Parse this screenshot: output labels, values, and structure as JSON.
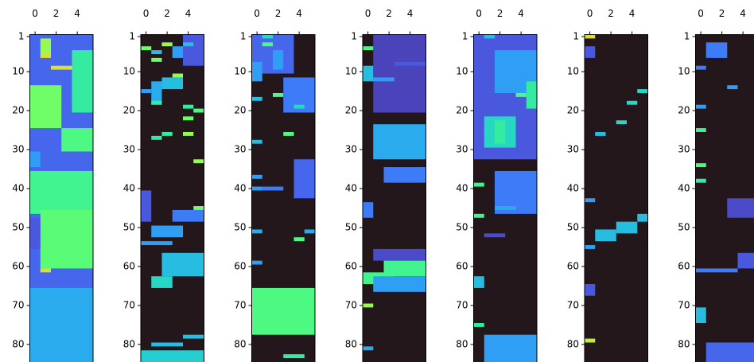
{
  "chart_data": [
    {
      "type": "heatmap",
      "colormap": "turbo",
      "clim": [
        0,
        1
      ],
      "xlim": [
        -0.5,
        5.5
      ],
      "ylim": [
        0.5,
        84.5
      ],
      "xticks": [
        0,
        2,
        4
      ],
      "yticks": [
        1,
        10,
        20,
        30,
        40,
        50,
        60,
        70,
        80
      ],
      "blocks": [
        [
          1,
          84,
          0,
          5,
          0.12
        ],
        [
          14,
          24,
          0,
          2,
          0.45
        ],
        [
          2,
          5,
          1,
          1,
          0.5
        ],
        [
          6,
          6,
          1,
          1,
          0.6
        ],
        [
          9,
          9,
          2,
          3,
          0.6
        ],
        [
          5,
          20,
          4,
          5,
          0.35
        ],
        [
          25,
          30,
          3,
          5,
          0.4
        ],
        [
          31,
          34,
          0,
          0,
          0.2
        ],
        [
          36,
          46,
          0,
          5,
          0.38
        ],
        [
          46,
          60,
          1,
          5,
          0.42
        ],
        [
          61,
          61,
          1,
          1,
          0.6
        ],
        [
          66,
          84,
          0,
          5,
          0.22
        ],
        [
          48,
          55,
          0,
          0,
          0.1
        ]
      ]
    },
    {
      "type": "heatmap",
      "colormap": "turbo",
      "clim": [
        0,
        1
      ],
      "xlim": [
        -0.5,
        5.5
      ],
      "ylim": [
        0.5,
        84.5
      ],
      "xticks": [
        0,
        2,
        4
      ],
      "yticks": [
        1,
        10,
        20,
        30,
        40,
        50,
        60,
        70,
        80
      ],
      "blocks": [
        [
          1,
          8,
          4,
          5,
          0.1
        ],
        [
          3,
          3,
          2,
          2,
          0.5
        ],
        [
          4,
          4,
          0,
          0,
          0.45
        ],
        [
          3,
          3,
          4,
          4,
          0.25
        ],
        [
          4,
          6,
          3,
          3,
          0.2
        ],
        [
          5,
          5,
          1,
          1,
          0.25
        ],
        [
          7,
          7,
          1,
          1,
          0.45
        ],
        [
          12,
          14,
          2,
          3,
          0.25
        ],
        [
          11,
          11,
          3,
          3,
          0.5
        ],
        [
          13,
          18,
          1,
          1,
          0.22
        ],
        [
          15,
          15,
          0,
          0,
          0.2
        ],
        [
          18,
          18,
          1,
          1,
          0.35
        ],
        [
          19,
          19,
          4,
          4,
          0.35
        ],
        [
          20,
          20,
          5,
          5,
          0.4
        ],
        [
          22,
          22,
          4,
          4,
          0.45
        ],
        [
          26,
          26,
          2,
          2,
          0.35
        ],
        [
          27,
          27,
          1,
          1,
          0.35
        ],
        [
          26,
          26,
          4,
          4,
          0.5
        ],
        [
          33,
          33,
          5,
          5,
          0.5
        ],
        [
          41,
          48,
          0,
          0,
          0.1
        ],
        [
          46,
          48,
          3,
          5,
          0.15
        ],
        [
          45,
          45,
          5,
          5,
          0.45
        ],
        [
          50,
          52,
          1,
          3,
          0.2
        ],
        [
          54,
          54,
          0,
          2,
          0.2
        ],
        [
          57,
          62,
          2,
          5,
          0.25
        ],
        [
          63,
          65,
          1,
          2,
          0.3
        ],
        [
          78,
          78,
          4,
          5,
          0.25
        ],
        [
          80,
          80,
          1,
          3,
          0.25
        ],
        [
          82,
          84,
          0,
          5,
          0.28
        ]
      ]
    },
    {
      "type": "heatmap",
      "colormap": "turbo",
      "clim": [
        0,
        1
      ],
      "xlim": [
        -0.5,
        5.5
      ],
      "ylim": [
        0.5,
        84.5
      ],
      "xticks": [
        0,
        2,
        4
      ],
      "yticks": [
        1,
        10,
        20,
        30,
        40,
        50,
        60,
        70,
        80
      ],
      "blocks": [
        [
          1,
          10,
          0,
          3,
          0.12
        ],
        [
          1,
          1,
          1,
          1,
          0.3
        ],
        [
          3,
          3,
          1,
          1,
          0.4
        ],
        [
          5,
          9,
          2,
          2,
          0.2
        ],
        [
          8,
          12,
          0,
          0,
          0.2
        ],
        [
          16,
          16,
          2,
          2,
          0.4
        ],
        [
          17,
          17,
          0,
          0,
          0.25
        ],
        [
          12,
          20,
          3,
          5,
          0.15
        ],
        [
          19,
          19,
          4,
          4,
          0.3
        ],
        [
          26,
          26,
          3,
          3,
          0.4
        ],
        [
          28,
          28,
          0,
          0,
          0.25
        ],
        [
          37,
          37,
          0,
          0,
          0.2
        ],
        [
          40,
          40,
          0,
          0,
          0.2
        ],
        [
          40,
          40,
          1,
          2,
          0.15
        ],
        [
          33,
          42,
          4,
          5,
          0.12
        ],
        [
          51,
          51,
          0,
          0,
          0.22
        ],
        [
          53,
          53,
          4,
          4,
          0.4
        ],
        [
          51,
          51,
          5,
          5,
          0.22
        ],
        [
          59,
          59,
          0,
          0,
          0.2
        ],
        [
          66,
          77,
          0,
          5,
          0.4
        ],
        [
          83,
          83,
          3,
          4,
          0.35
        ]
      ]
    },
    {
      "type": "heatmap",
      "colormap": "turbo",
      "clim": [
        0,
        1
      ],
      "xlim": [
        -0.5,
        5.5
      ],
      "ylim": [
        0.5,
        84.5
      ],
      "xticks": [
        0,
        2,
        4
      ],
      "yticks": [
        1,
        10,
        20,
        30,
        40,
        50,
        60,
        70,
        80
      ],
      "blocks": [
        [
          1,
          20,
          1,
          5,
          0.07
        ],
        [
          4,
          4,
          0,
          0,
          0.4
        ],
        [
          9,
          12,
          0,
          0,
          0.25
        ],
        [
          12,
          12,
          1,
          2,
          0.2
        ],
        [
          8,
          8,
          3,
          5,
          0.1
        ],
        [
          24,
          32,
          1,
          5,
          0.22
        ],
        [
          35,
          38,
          2,
          5,
          0.15
        ],
        [
          44,
          47,
          0,
          0,
          0.15
        ],
        [
          56,
          58,
          1,
          5,
          0.08
        ],
        [
          59,
          62,
          2,
          5,
          0.38
        ],
        [
          62,
          64,
          0,
          2,
          0.38
        ],
        [
          63,
          66,
          1,
          5,
          0.2
        ],
        [
          70,
          70,
          0,
          0,
          0.5
        ],
        [
          81,
          81,
          0,
          0,
          0.22
        ]
      ]
    },
    {
      "type": "heatmap",
      "colormap": "turbo",
      "clim": [
        0,
        1
      ],
      "xlim": [
        -0.5,
        5.5
      ],
      "ylim": [
        0.5,
        84.5
      ],
      "xticks": [
        0,
        2,
        4
      ],
      "yticks": [
        1,
        10,
        20,
        30,
        40,
        50,
        60,
        70,
        80
      ],
      "blocks": [
        [
          1,
          32,
          0,
          5,
          0.1
        ],
        [
          1,
          1,
          1,
          1,
          0.25
        ],
        [
          5,
          15,
          2,
          5,
          0.2
        ],
        [
          13,
          19,
          5,
          5,
          0.35
        ],
        [
          22,
          29,
          1,
          3,
          0.3
        ],
        [
          16,
          16,
          4,
          4,
          0.4
        ],
        [
          23,
          28,
          2,
          2,
          0.35
        ],
        [
          39,
          39,
          0,
          0,
          0.38
        ],
        [
          47,
          47,
          0,
          0,
          0.38
        ],
        [
          36,
          46,
          2,
          5,
          0.15
        ],
        [
          45,
          45,
          2,
          3,
          0.22
        ],
        [
          52,
          52,
          1,
          2,
          0.08
        ],
        [
          63,
          65,
          0,
          0,
          0.25
        ],
        [
          75,
          75,
          0,
          0,
          0.35
        ],
        [
          78,
          84,
          1,
          5,
          0.2
        ]
      ]
    },
    {
      "type": "heatmap",
      "colormap": "turbo",
      "clim": [
        0,
        1
      ],
      "xlim": [
        -0.5,
        5.5
      ],
      "ylim": [
        0.5,
        84.5
      ],
      "xticks": [
        0,
        2,
        4
      ],
      "yticks": [
        1,
        10,
        20,
        30,
        40,
        50,
        60,
        70,
        80
      ],
      "blocks": [
        [
          1,
          1,
          0,
          0,
          0.6
        ],
        [
          4,
          6,
          0,
          0,
          0.1
        ],
        [
          43,
          43,
          0,
          0,
          0.2
        ],
        [
          26,
          26,
          1,
          1,
          0.25
        ],
        [
          23,
          23,
          3,
          3,
          0.3
        ],
        [
          18,
          18,
          4,
          4,
          0.3
        ],
        [
          15,
          15,
          5,
          5,
          0.3
        ],
        [
          51,
          53,
          1,
          2,
          0.25
        ],
        [
          49,
          51,
          3,
          4,
          0.25
        ],
        [
          47,
          48,
          5,
          5,
          0.25
        ],
        [
          55,
          55,
          0,
          0,
          0.2
        ],
        [
          65,
          67,
          0,
          0,
          0.1
        ],
        [
          79,
          79,
          0,
          0,
          0.55
        ]
      ]
    },
    {
      "type": "heatmap",
      "colormap": "turbo",
      "clim": [
        0,
        1
      ],
      "xlim": [
        -0.5,
        5.5
      ],
      "ylim": [
        0.5,
        84.5
      ],
      "xticks": [
        0,
        2,
        4
      ],
      "yticks": [
        1,
        10,
        20,
        30,
        40,
        50,
        60,
        70,
        80
      ],
      "blocks": [
        [
          3,
          6,
          1,
          2,
          0.15
        ],
        [
          14,
          14,
          3,
          3,
          0.2
        ],
        [
          19,
          19,
          0,
          0,
          0.2
        ],
        [
          25,
          25,
          0,
          0,
          0.38
        ],
        [
          34,
          34,
          0,
          0,
          0.4
        ],
        [
          38,
          38,
          0,
          0,
          0.35
        ],
        [
          9,
          9,
          0,
          0,
          0.15
        ],
        [
          61,
          61,
          0,
          3,
          0.15
        ],
        [
          57,
          60,
          4,
          5,
          0.1
        ],
        [
          71,
          74,
          0,
          0,
          0.25
        ],
        [
          80,
          84,
          1,
          5,
          0.12
        ],
        [
          43,
          47,
          3,
          5,
          0.08
        ]
      ]
    }
  ]
}
